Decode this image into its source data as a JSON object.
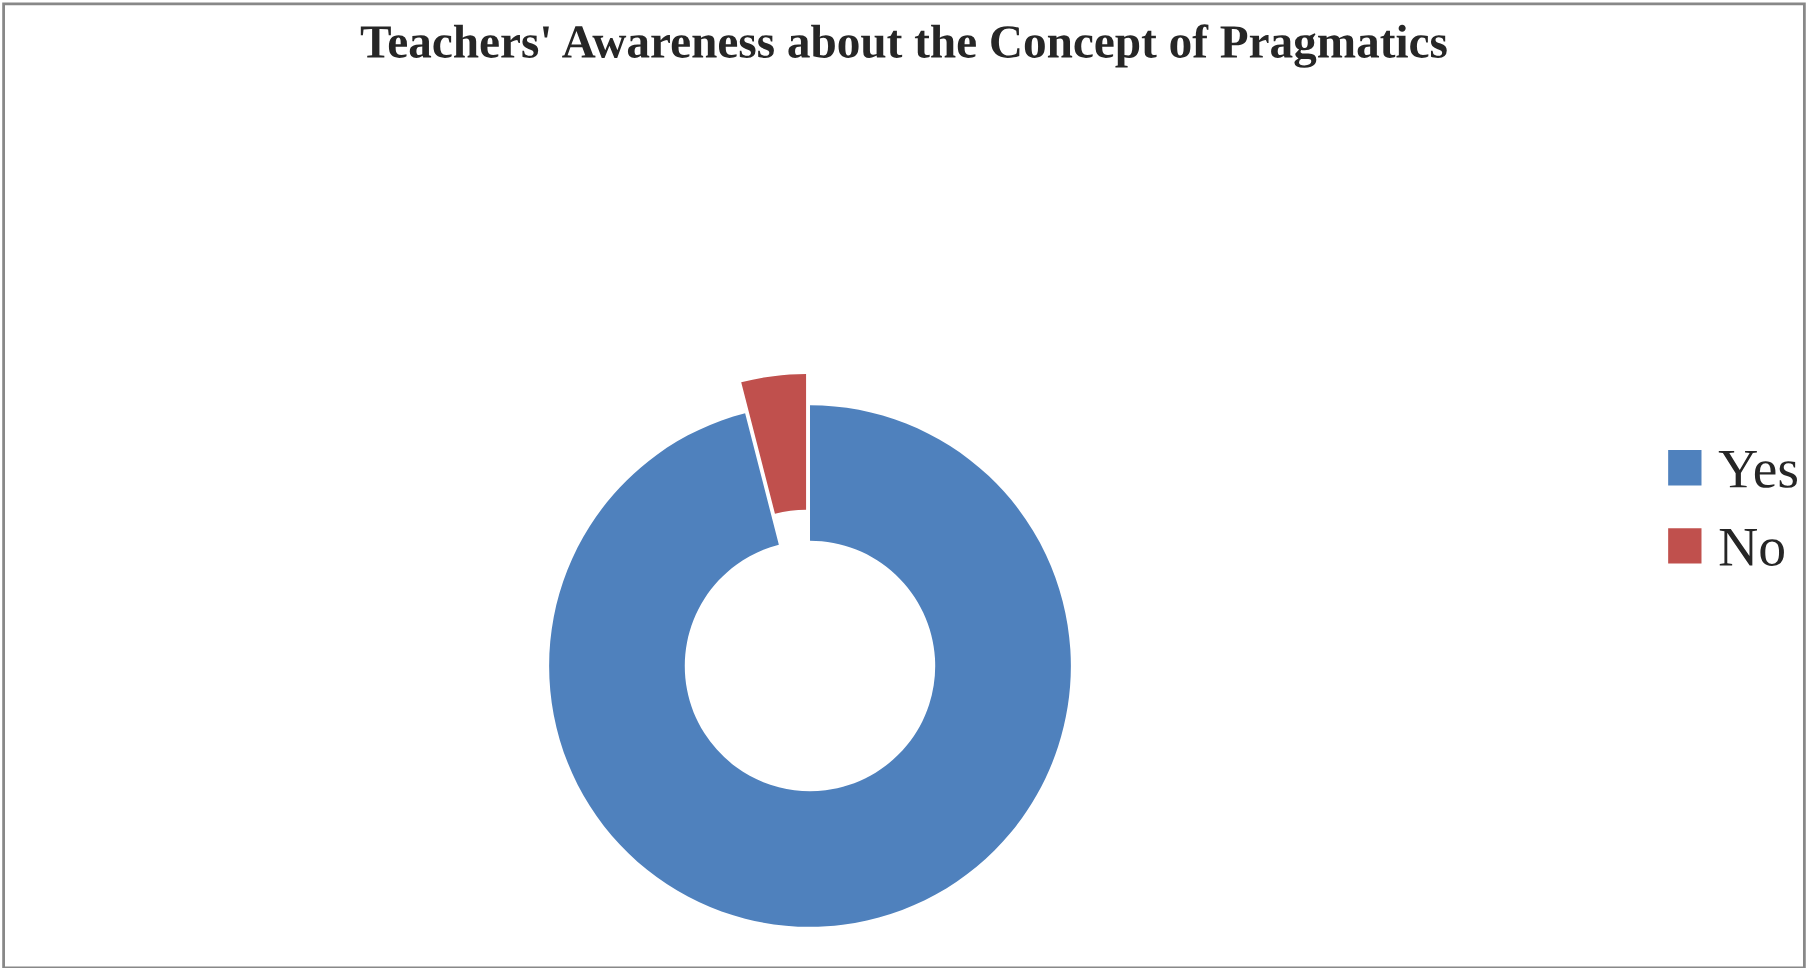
{
  "chart_data": {
    "type": "donut",
    "title": "Teachers' Awareness about the Concept of Pragmatics",
    "categories": [
      "Yes",
      "No"
    ],
    "values": [
      96,
      4
    ],
    "colors": [
      "#4f81bd",
      "#c0504d"
    ],
    "legend": "right"
  }
}
